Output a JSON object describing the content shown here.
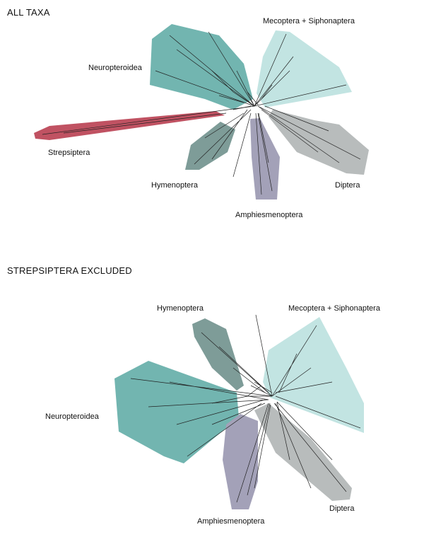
{
  "panels": [
    {
      "title": "ALL TAXA",
      "groups": {
        "neuropteroidea": {
          "label": "Neuropteroidea",
          "color": "#72b5b0"
        },
        "mecoptera": {
          "label": "Mecoptera + Siphonaptera",
          "color": "#c2e4e2"
        },
        "strepsiptera": {
          "label": "Strepsiptera",
          "color": "#c05262"
        },
        "hymenoptera": {
          "label": "Hymenoptera",
          "color": "#7e9c98"
        },
        "amphiesmenoptera": {
          "label": "Amphiesmenoptera",
          "color": "#a3a1b8"
        },
        "diptera": {
          "label": "Diptera",
          "color": "#b8bcbc"
        }
      }
    },
    {
      "title": "STREPSIPTERA EXCLUDED",
      "groups": {
        "hymenoptera": {
          "label": "Hymenoptera",
          "color": "#7e9c98"
        },
        "mecoptera": {
          "label": "Mecoptera + Siphonaptera",
          "color": "#c2e4e2"
        },
        "neuropteroidea": {
          "label": "Neuropteroidea",
          "color": "#72b5b0"
        },
        "amphiesmenoptera": {
          "label": "Amphiesmenoptera",
          "color": "#a3a1b8"
        },
        "diptera": {
          "label": "Diptera",
          "color": "#b8bcbc"
        }
      }
    }
  ]
}
